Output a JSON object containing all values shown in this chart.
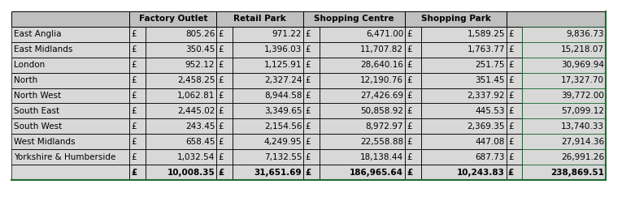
{
  "rows": [
    [
      "East Anglia",
      805.26,
      971.22,
      6471.0,
      1589.25,
      9836.73
    ],
    [
      "East Midlands",
      350.45,
      1396.03,
      11707.82,
      1763.77,
      15218.07
    ],
    [
      "London",
      952.12,
      1125.91,
      28640.16,
      251.75,
      30969.94
    ],
    [
      "North",
      2458.25,
      2327.24,
      12190.76,
      351.45,
      17327.7
    ],
    [
      "North West",
      1062.81,
      8944.58,
      27426.69,
      2337.92,
      39772.0
    ],
    [
      "South East",
      2445.02,
      3349.65,
      50858.92,
      445.53,
      57099.12
    ],
    [
      "South West",
      243.45,
      2154.56,
      8972.97,
      2369.35,
      13740.33
    ],
    [
      "West Midlands",
      658.45,
      4249.95,
      22558.88,
      447.08,
      27914.36
    ],
    [
      "Yorkshire & Humberside",
      1032.54,
      7132.55,
      18138.44,
      687.73,
      26991.26
    ],
    [
      "",
      10008.35,
      31651.69,
      186965.64,
      10243.83,
      238869.51
    ]
  ],
  "col_headers": [
    "",
    "Factory Outlet",
    "Retail Park",
    "Shopping Centre",
    "Shopping Park",
    ""
  ],
  "page_bg": "#ffffff",
  "header_bg": "#c0c0c0",
  "data_bg": "#d8d8d8",
  "total_bg": "#d8d8d8",
  "cell_border": "#000000",
  "green_border": "#1f6b35",
  "text_color": "#000000",
  "font_size": 7.5,
  "col_props": [
    0.163,
    0.022,
    0.098,
    0.022,
    0.098,
    0.022,
    0.118,
    0.022,
    0.118,
    0.022,
    0.115
  ]
}
